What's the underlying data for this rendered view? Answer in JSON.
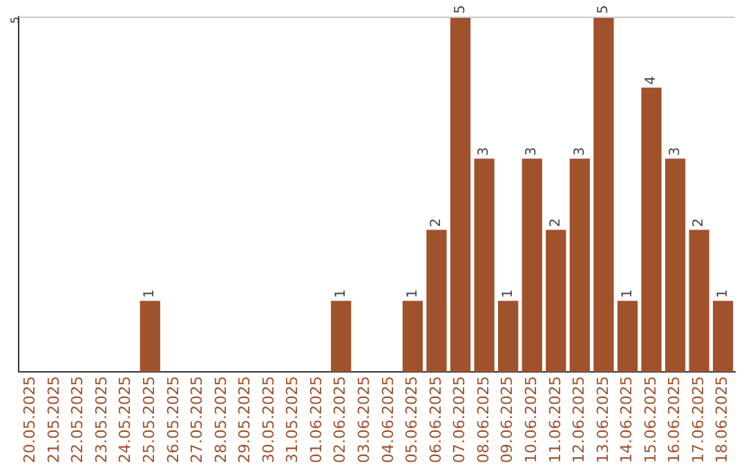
{
  "chart_data": {
    "type": "bar",
    "categories": [
      "20.05.2025",
      "21.05.2025",
      "22.05.2025",
      "23.05.2025",
      "24.05.2025",
      "25.05.2025",
      "26.05.2025",
      "27.05.2025",
      "28.05.2025",
      "29.05.2025",
      "30.05.2025",
      "31.05.2025",
      "01.06.2025",
      "02.06.2025",
      "03.06.2025",
      "04.06.2025",
      "05.06.2025",
      "06.06.2025",
      "07.06.2025",
      "08.06.2025",
      "09.06.2025",
      "10.06.2025",
      "11.06.2025",
      "12.06.2025",
      "13.06.2025",
      "14.06.2025",
      "15.06.2025",
      "16.06.2025",
      "17.06.2025",
      "18.06.2025"
    ],
    "values": [
      0,
      0,
      0,
      0,
      0,
      1,
      0,
      0,
      0,
      0,
      0,
      0,
      0,
      1,
      0,
      0,
      1,
      2,
      5,
      3,
      1,
      3,
      2,
      3,
      5,
      1,
      4,
      3,
      2,
      1
    ],
    "value_labels": [
      null,
      null,
      null,
      null,
      null,
      "1",
      null,
      null,
      null,
      null,
      null,
      null,
      null,
      "1",
      null,
      null,
      "1",
      "2",
      "5",
      "3",
      "1",
      "3",
      "2",
      "3",
      "5",
      "1",
      "4",
      "3",
      "2",
      "1"
    ],
    "color": "#a0522d",
    "ylim": [
      0,
      5
    ],
    "yticks": [
      5
    ],
    "legend": false
  }
}
